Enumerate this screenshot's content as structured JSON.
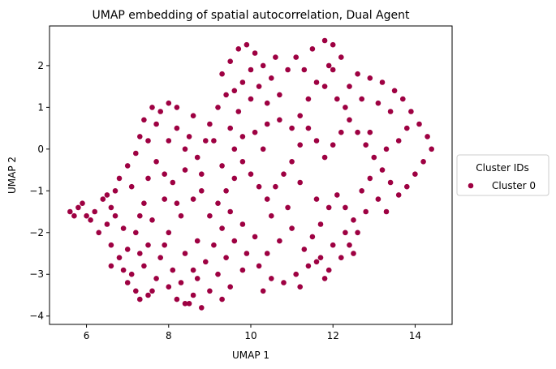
{
  "chart_data": {
    "type": "scatter",
    "title": "UMAP embedding of spatial autocorrelation, Dual Agent",
    "xlabel": "UMAP 1",
    "ylabel": "UMAP 2",
    "xlim": [
      5.1,
      14.9
    ],
    "ylim": [
      -4.2,
      2.95
    ],
    "xticks": [
      6,
      8,
      10,
      12,
      14
    ],
    "yticks": [
      -4,
      -3,
      -2,
      -1,
      0,
      1,
      2
    ],
    "grid": false,
    "legend": {
      "title": "Cluster IDs",
      "placement": "right-outside",
      "entries": [
        "Cluster 0"
      ]
    },
    "series": [
      {
        "name": "Cluster 0",
        "color": "#9e0142",
        "points": [
          [
            5.6,
            -1.5
          ],
          [
            5.8,
            -1.4
          ],
          [
            6.0,
            -1.6
          ],
          [
            6.2,
            -1.5
          ],
          [
            5.7,
            -1.6
          ],
          [
            5.9,
            -1.3
          ],
          [
            6.1,
            -1.7
          ],
          [
            6.4,
            -1.2
          ],
          [
            6.6,
            -1.4
          ],
          [
            6.7,
            -1.0
          ],
          [
            6.5,
            -1.8
          ],
          [
            6.3,
            -2.0
          ],
          [
            6.6,
            -2.3
          ],
          [
            6.8,
            -2.6
          ],
          [
            6.9,
            -2.9
          ],
          [
            6.6,
            -2.8
          ],
          [
            7.0,
            -3.2
          ],
          [
            7.2,
            -3.4
          ],
          [
            7.3,
            -3.6
          ],
          [
            7.5,
            -3.5
          ],
          [
            7.1,
            -3.0
          ],
          [
            6.8,
            -0.7
          ],
          [
            7.0,
            -0.4
          ],
          [
            7.2,
            -0.1
          ],
          [
            7.3,
            0.3
          ],
          [
            7.4,
            0.7
          ],
          [
            7.6,
            1.0
          ],
          [
            7.8,
            0.9
          ],
          [
            8.0,
            1.1
          ],
          [
            8.2,
            1.0
          ],
          [
            7.5,
            0.2
          ],
          [
            7.7,
            -0.3
          ],
          [
            7.9,
            -0.6
          ],
          [
            7.1,
            -0.9
          ],
          [
            7.4,
            -1.3
          ],
          [
            7.6,
            -1.7
          ],
          [
            7.2,
            -2.0
          ],
          [
            7.5,
            -2.3
          ],
          [
            7.8,
            -2.6
          ],
          [
            7.4,
            -2.8
          ],
          [
            7.7,
            -3.1
          ],
          [
            8.0,
            -3.3
          ],
          [
            8.2,
            -3.6
          ],
          [
            8.5,
            -3.7
          ],
          [
            8.8,
            -3.8
          ],
          [
            8.6,
            -3.5
          ],
          [
            8.3,
            -3.2
          ],
          [
            8.1,
            -2.9
          ],
          [
            8.4,
            -2.5
          ],
          [
            8.7,
            -2.2
          ],
          [
            8.0,
            -2.0
          ],
          [
            8.3,
            -1.6
          ],
          [
            8.6,
            -1.2
          ],
          [
            8.1,
            -0.8
          ],
          [
            8.4,
            -0.5
          ],
          [
            8.7,
            -0.2
          ],
          [
            8.9,
            0.2
          ],
          [
            8.5,
            0.3
          ],
          [
            8.2,
            0.5
          ],
          [
            8.6,
            0.8
          ],
          [
            9.0,
            0.6
          ],
          [
            9.2,
            1.0
          ],
          [
            9.4,
            1.3
          ],
          [
            9.3,
            1.8
          ],
          [
            9.5,
            2.1
          ],
          [
            9.7,
            2.4
          ],
          [
            9.9,
            2.5
          ],
          [
            10.1,
            2.3
          ],
          [
            10.3,
            2.0
          ],
          [
            10.0,
            1.9
          ],
          [
            9.8,
            1.6
          ],
          [
            10.2,
            1.5
          ],
          [
            10.5,
            1.7
          ],
          [
            10.7,
            1.3
          ],
          [
            10.4,
            1.1
          ],
          [
            10.0,
            1.2
          ],
          [
            9.7,
            0.9
          ],
          [
            9.5,
            0.5
          ],
          [
            9.8,
            0.3
          ],
          [
            10.1,
            0.4
          ],
          [
            10.4,
            0.6
          ],
          [
            10.7,
            0.7
          ],
          [
            11.0,
            0.5
          ],
          [
            11.2,
            0.8
          ],
          [
            11.4,
            1.2
          ],
          [
            11.6,
            1.6
          ],
          [
            11.3,
            1.9
          ],
          [
            11.1,
            2.2
          ],
          [
            11.5,
            2.4
          ],
          [
            11.8,
            2.6
          ],
          [
            12.0,
            2.5
          ],
          [
            12.2,
            2.2
          ],
          [
            12.0,
            1.9
          ],
          [
            11.8,
            1.5
          ],
          [
            12.1,
            1.2
          ],
          [
            12.4,
            1.5
          ],
          [
            12.6,
            1.8
          ],
          [
            12.9,
            1.7
          ],
          [
            13.2,
            1.6
          ],
          [
            13.5,
            1.4
          ],
          [
            13.7,
            1.2
          ],
          [
            13.9,
            0.9
          ],
          [
            14.1,
            0.6
          ],
          [
            14.3,
            0.3
          ],
          [
            14.4,
            0.0
          ],
          [
            14.2,
            -0.3
          ],
          [
            14.0,
            -0.6
          ],
          [
            13.8,
            -0.9
          ],
          [
            13.6,
            -1.1
          ],
          [
            13.4,
            -0.8
          ],
          [
            13.2,
            -0.5
          ],
          [
            13.0,
            -0.2
          ],
          [
            12.8,
            0.1
          ],
          [
            12.6,
            0.4
          ],
          [
            12.4,
            0.7
          ],
          [
            12.2,
            0.4
          ],
          [
            12.0,
            0.1
          ],
          [
            11.8,
            -0.2
          ],
          [
            11.6,
            0.2
          ],
          [
            11.4,
            0.5
          ],
          [
            11.2,
            0.1
          ],
          [
            11.0,
            -0.3
          ],
          [
            10.8,
            -0.6
          ],
          [
            10.6,
            -0.9
          ],
          [
            10.4,
            -1.2
          ],
          [
            10.2,
            -0.9
          ],
          [
            10.0,
            -0.6
          ],
          [
            9.8,
            -0.3
          ],
          [
            9.6,
            -0.7
          ],
          [
            9.4,
            -1.0
          ],
          [
            9.2,
            -1.3
          ],
          [
            9.0,
            -1.6
          ],
          [
            9.3,
            -1.9
          ],
          [
            9.6,
            -2.2
          ],
          [
            9.9,
            -2.5
          ],
          [
            10.2,
            -2.8
          ],
          [
            10.5,
            -3.1
          ],
          [
            10.8,
            -3.2
          ],
          [
            11.1,
            -3.0
          ],
          [
            11.4,
            -2.8
          ],
          [
            11.7,
            -2.6
          ],
          [
            12.0,
            -2.3
          ],
          [
            12.3,
            -2.0
          ],
          [
            12.5,
            -1.7
          ],
          [
            12.3,
            -1.4
          ],
          [
            12.1,
            -1.1
          ],
          [
            11.9,
            -1.4
          ],
          [
            11.7,
            -1.8
          ],
          [
            11.5,
            -2.1
          ],
          [
            11.3,
            -2.4
          ],
          [
            11.6,
            -2.7
          ],
          [
            11.9,
            -2.9
          ],
          [
            12.2,
            -2.6
          ],
          [
            12.4,
            -2.3
          ],
          [
            11.0,
            -1.9
          ],
          [
            10.7,
            -2.2
          ],
          [
            10.4,
            -2.5
          ],
          [
            10.1,
            -2.1
          ],
          [
            9.8,
            -1.8
          ],
          [
            9.5,
            -1.5
          ],
          [
            9.1,
            -2.3
          ],
          [
            8.9,
            -2.7
          ],
          [
            9.2,
            -3.0
          ],
          [
            9.5,
            -3.3
          ],
          [
            9.0,
            -3.4
          ],
          [
            8.7,
            -3.1
          ],
          [
            12.7,
            -1.0
          ],
          [
            12.9,
            -0.7
          ],
          [
            13.1,
            -1.2
          ],
          [
            13.3,
            -1.5
          ],
          [
            12.8,
            -1.5
          ],
          [
            13.6,
            0.2
          ],
          [
            13.8,
            0.5
          ],
          [
            13.4,
            0.9
          ],
          [
            13.1,
            1.1
          ],
          [
            12.7,
            1.2
          ],
          [
            12.9,
            0.4
          ],
          [
            13.3,
            0.0
          ],
          [
            11.9,
            2.0
          ],
          [
            12.3,
            1.0
          ],
          [
            10.9,
            1.9
          ],
          [
            10.6,
            2.2
          ],
          [
            9.6,
            1.4
          ],
          [
            9.1,
            0.2
          ],
          [
            8.8,
            -0.6
          ],
          [
            7.9,
            -1.2
          ],
          [
            7.3,
            -1.6
          ],
          [
            6.9,
            -1.9
          ],
          [
            6.7,
            -1.6
          ],
          [
            7.0,
            -2.4
          ],
          [
            7.6,
            -3.4
          ],
          [
            8.4,
            -3.7
          ],
          [
            9.3,
            -3.6
          ],
          [
            9.8,
            -2.9
          ],
          [
            10.3,
            -3.4
          ],
          [
            11.2,
            -3.3
          ],
          [
            11.8,
            -3.1
          ],
          [
            12.5,
            -2.5
          ],
          [
            12.6,
            -2.0
          ],
          [
            11.6,
            -1.2
          ],
          [
            11.2,
            -0.8
          ],
          [
            10.9,
            -1.4
          ],
          [
            10.5,
            -1.6
          ],
          [
            10.3,
            0.0
          ],
          [
            9.6,
            0.0
          ],
          [
            9.3,
            -0.4
          ],
          [
            8.4,
            0.0
          ],
          [
            8.0,
            0.2
          ],
          [
            7.7,
            0.6
          ],
          [
            7.5,
            -0.7
          ],
          [
            8.2,
            -1.3
          ],
          [
            8.8,
            -1.0
          ],
          [
            9.4,
            -2.6
          ],
          [
            8.6,
            -2.9
          ],
          [
            7.9,
            -2.3
          ],
          [
            7.3,
            -2.5
          ],
          [
            6.5,
            -1.1
          ]
        ]
      }
    ]
  }
}
